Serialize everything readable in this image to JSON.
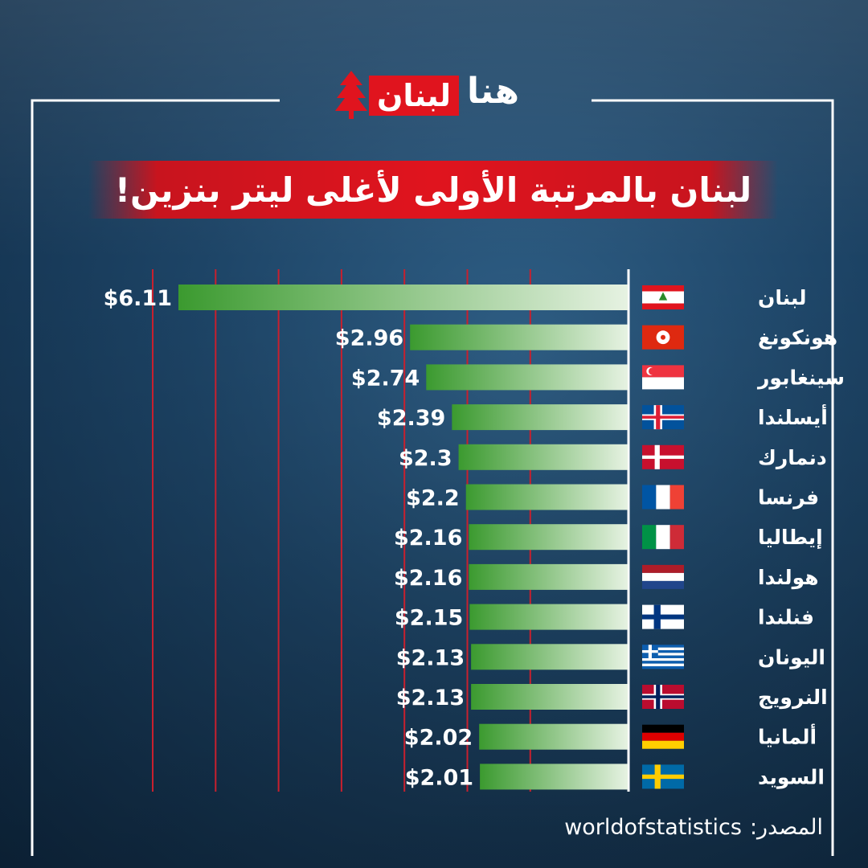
{
  "brand": {
    "logo_text_red": "لبنان",
    "logo_text_white": "هنا"
  },
  "title": "لبنان بالمرتبة الأولى لأغلى ليتر بنزين!",
  "source": {
    "label": "المصدر:",
    "value": "worldofstatistics"
  },
  "colors": {
    "bar_dark": "#3b9a2f",
    "bar_light": "#e6f2e2",
    "gridline": "#c8202e",
    "title_bg": "#e0141e"
  },
  "chart_data": {
    "type": "bar",
    "orientation": "horizontal",
    "title": "لبنان بالمرتبة الأولى لأغلى ليتر بنزين!",
    "xlabel": "",
    "ylabel": "",
    "value_prefix": "$",
    "xlim": [
      0,
      6.5
    ],
    "grid": true,
    "categories": [
      "لبنان",
      "هونكونغ",
      "سينغابور",
      "أيسلندا",
      "دنمارك",
      "فرنسا",
      "إيطاليا",
      "هولندا",
      "فنلندا",
      "اليونان",
      "النرويج",
      "ألمانيا",
      "السويد"
    ],
    "flags": [
      "lebanon",
      "hong-kong",
      "singapore",
      "iceland",
      "denmark",
      "france",
      "italy",
      "netherlands",
      "finland",
      "greece",
      "norway",
      "germany",
      "sweden"
    ],
    "values": [
      6.11,
      2.96,
      2.74,
      2.39,
      2.3,
      2.2,
      2.16,
      2.16,
      2.15,
      2.13,
      2.13,
      2.02,
      2.01
    ],
    "labels": [
      "$6.11",
      "$2.96",
      "$2.74",
      "$2.39",
      "$2.3",
      "$2.2",
      "$2.16",
      "$2.16",
      "$2.15",
      "$2.13",
      "$2.13",
      "$2.02",
      "$2.01"
    ]
  }
}
